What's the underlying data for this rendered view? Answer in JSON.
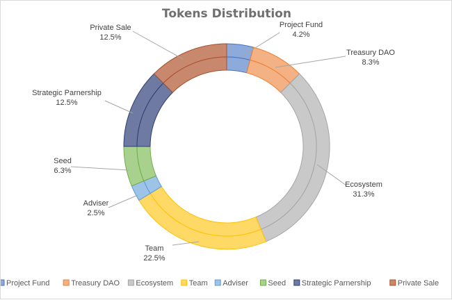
{
  "chart_data": {
    "type": "pie",
    "subtype": "doughnut",
    "title": "Tokens Distribution",
    "legend_position": "bottom",
    "series": [
      {
        "name": "Project Fund",
        "value": 4.2,
        "label": "4.2%",
        "color": "#8eaadb",
        "edge": "#4472c4"
      },
      {
        "name": "Treasury DAO",
        "value": 8.3,
        "label": "8.3%",
        "color": "#f4b183",
        "edge": "#ed7d31"
      },
      {
        "name": "Ecosystem",
        "value": 31.3,
        "label": "31.3%",
        "color": "#c9c9c9",
        "edge": "#a5a5a5"
      },
      {
        "name": "Team",
        "value": 22.5,
        "label": "22.5%",
        "color": "#ffd966",
        "edge": "#ffc000"
      },
      {
        "name": "Adviser",
        "value": 2.5,
        "label": "2.5%",
        "color": "#9dc3e6",
        "edge": "#5b9bd5"
      },
      {
        "name": "Seed",
        "value": 6.3,
        "label": "6.3%",
        "color": "#a9d18e",
        "edge": "#70ad47"
      },
      {
        "name": "Strategic Parnership",
        "value": 12.5,
        "label": "12.5%",
        "color": "#6e7aa2",
        "edge": "#2f3e6e"
      },
      {
        "name": "Private Sale",
        "value": 12.5,
        "label": "12.5%",
        "color": "#c8886e",
        "edge": "#a9502a"
      }
    ]
  }
}
